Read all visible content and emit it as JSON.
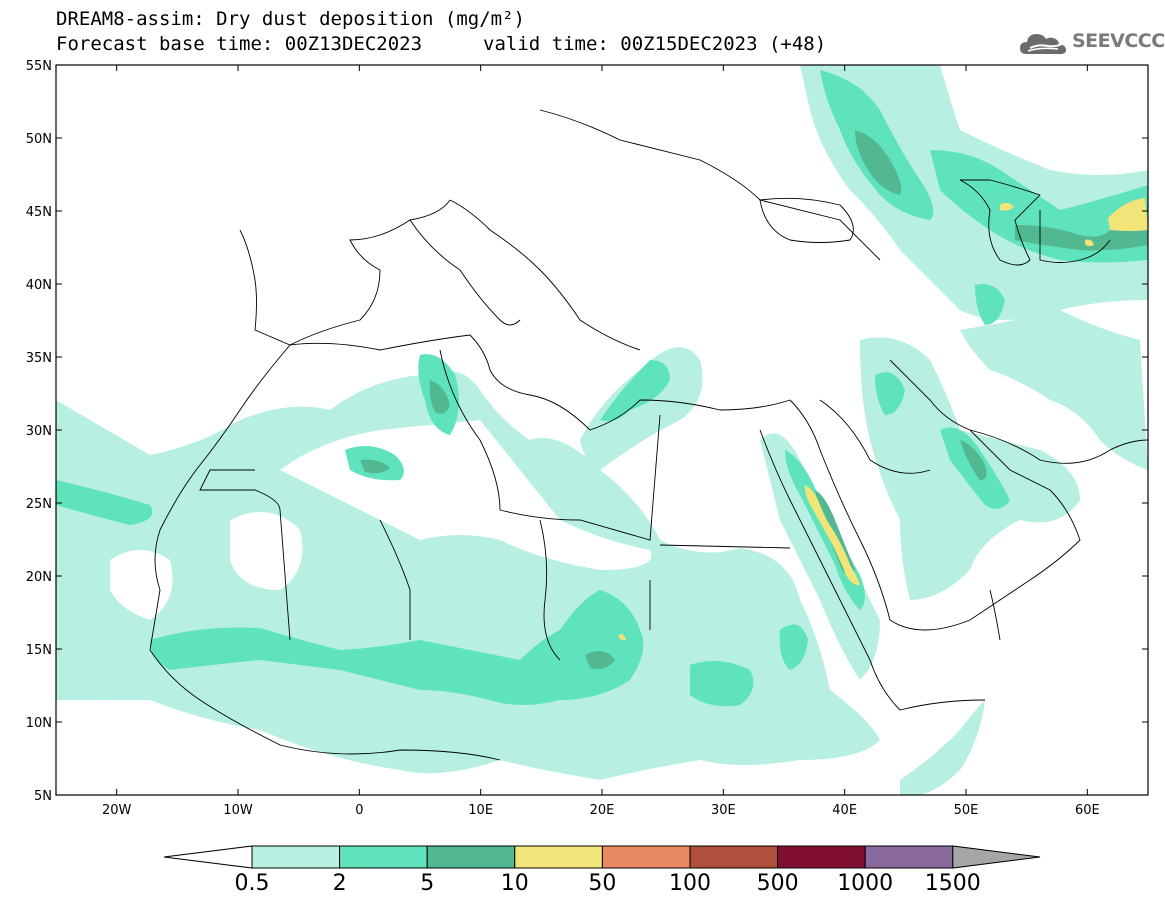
{
  "header": {
    "title_line1": "DREAM8-assim: Dry dust deposition (mg/m²)",
    "title_line2": "Forecast base time: 00Z13DEC2023",
    "valid_time": "valid time: 00Z15DEC2023 (+48)",
    "logo_text": "SEEVCCC"
  },
  "map": {
    "lon_range": [
      -25,
      65
    ],
    "lat_range": [
      5,
      55
    ],
    "lat_ticks": [
      {
        "value": 55,
        "label": "55N"
      },
      {
        "value": 50,
        "label": "50N"
      },
      {
        "value": 45,
        "label": "45N"
      },
      {
        "value": 40,
        "label": "40N"
      },
      {
        "value": 35,
        "label": "35N"
      },
      {
        "value": 30,
        "label": "30N"
      },
      {
        "value": 25,
        "label": "25N"
      },
      {
        "value": 20,
        "label": "20N"
      },
      {
        "value": 15,
        "label": "15N"
      },
      {
        "value": 10,
        "label": "10N"
      },
      {
        "value": 5,
        "label": "5N"
      }
    ],
    "lon_ticks": [
      {
        "value": -20,
        "label": "20W"
      },
      {
        "value": -10,
        "label": "10W"
      },
      {
        "value": 0,
        "label": "0"
      },
      {
        "value": 10,
        "label": "10E"
      },
      {
        "value": 20,
        "label": "20E"
      },
      {
        "value": 30,
        "label": "30E"
      },
      {
        "value": 40,
        "label": "40E"
      },
      {
        "value": 50,
        "label": "50E"
      },
      {
        "value": 60,
        "label": "60E"
      }
    ]
  },
  "colorbar": {
    "labels": [
      "0.5",
      "2",
      "5",
      "10",
      "50",
      "100",
      "500",
      "1000",
      "1500"
    ],
    "colors": [
      "#b7efe3",
      "#5fe3bc",
      "#52b891",
      "#f3e47a",
      "#ea8a64",
      "#b0503c",
      "#800f2f",
      "#8a6a9e"
    ],
    "under_color": "#ffffff",
    "over_color": "#a6a6a6"
  }
}
